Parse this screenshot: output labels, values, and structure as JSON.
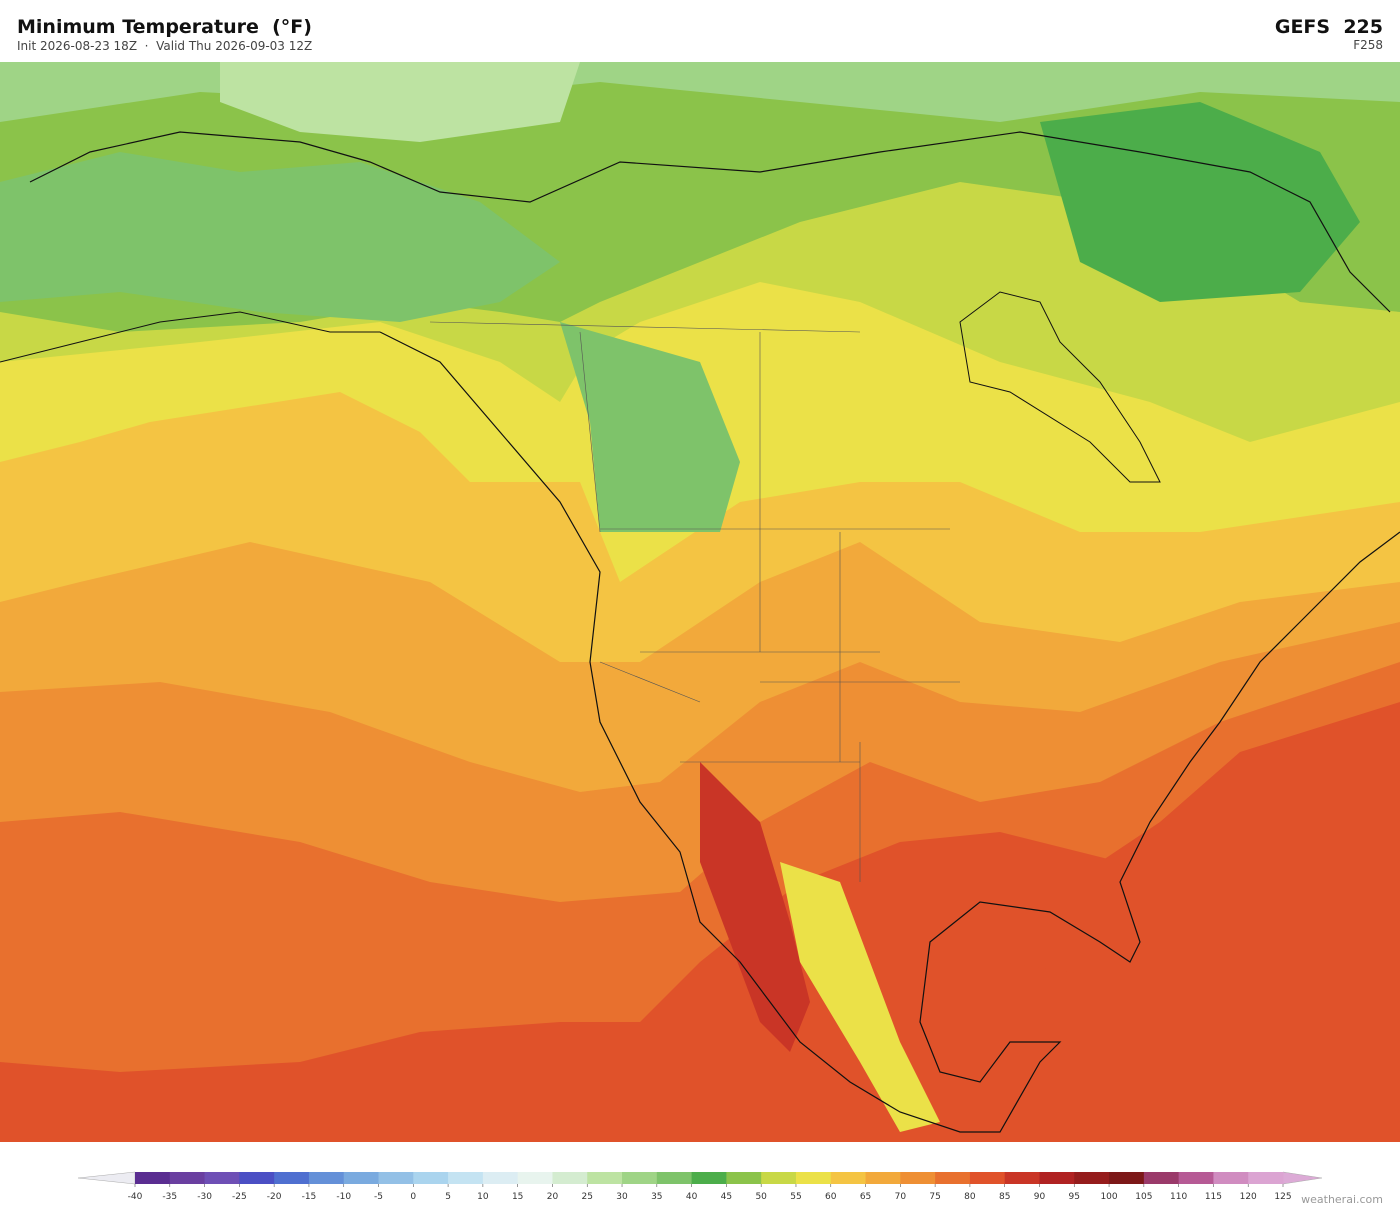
{
  "header": {
    "title": "Minimum Temperature  (°F)",
    "subtitle": "Init 2026-08-23 18Z  ·  Valid Thu 2026-09-03 12Z",
    "model": "GEFS  225",
    "forecast_hour": "F258"
  },
  "colorbar": {
    "ticks": [
      -40,
      -35,
      -30,
      -25,
      -20,
      -15,
      -10,
      -5,
      0,
      5,
      10,
      15,
      20,
      25,
      30,
      35,
      40,
      45,
      50,
      55,
      60,
      65,
      70,
      75,
      80,
      85,
      90,
      95,
      100,
      105,
      110,
      115,
      120,
      125
    ],
    "under_color": "#ececf2",
    "over_color": "#dcaad6",
    "colors": [
      "#5a2d91",
      "#6a3fa0",
      "#6e4fb5",
      "#4b4fc4",
      "#4f6fd0",
      "#6490d8",
      "#7aaadf",
      "#93c0e6",
      "#aad4ee",
      "#c4e3f2",
      "#dcedf3",
      "#e8f4ee",
      "#d4ecd0",
      "#bde3a2",
      "#9fd486",
      "#7ec36a",
      "#4cad4a",
      "#8bc34a",
      "#c8d846",
      "#ebe148",
      "#f4c443",
      "#f2a93b",
      "#ee8f34",
      "#e8702e",
      "#e0522a",
      "#c93526",
      "#b02222",
      "#951c1c",
      "#7c1818",
      "#9a3a6a",
      "#b65a95",
      "#d08cc0",
      "#dba4d2"
    ]
  },
  "footer": {
    "credit": "weatherai.com"
  }
}
